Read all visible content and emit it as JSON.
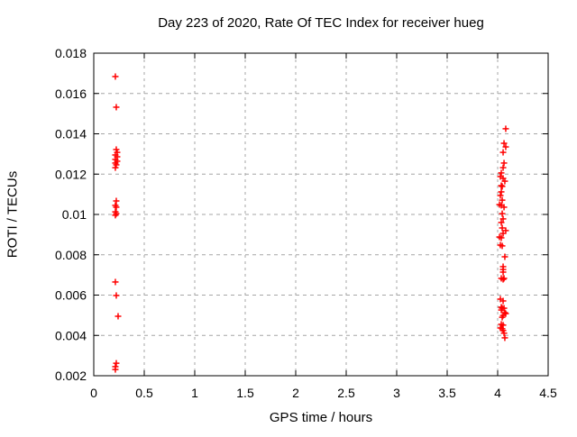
{
  "chart_data": {
    "type": "scatter",
    "title": "Day 223 of 2020, Rate Of TEC Index for receiver hueg",
    "xlabel": "GPS time / hours",
    "ylabel": "ROTI / TECUs",
    "xlim": [
      0,
      4.5
    ],
    "ylim": [
      0.002,
      0.018
    ],
    "xticks": [
      [
        0,
        "0"
      ],
      [
        0.5,
        "0.5"
      ],
      [
        1,
        "1"
      ],
      [
        1.5,
        "1.5"
      ],
      [
        2,
        "2"
      ],
      [
        2.5,
        "2.5"
      ],
      [
        3,
        "3"
      ],
      [
        3.5,
        "3.5"
      ],
      [
        4,
        "4"
      ],
      [
        4.5,
        "4.5"
      ]
    ],
    "yticks": [
      [
        0.002,
        "0.002"
      ],
      [
        0.004,
        "0.004"
      ],
      [
        0.006,
        "0.006"
      ],
      [
        0.008,
        "0.008"
      ],
      [
        0.01,
        "0.01"
      ],
      [
        0.012,
        "0.012"
      ],
      [
        0.014,
        "0.014"
      ],
      [
        0.016,
        "0.016"
      ],
      [
        0.018,
        "0.018"
      ]
    ],
    "grid": true,
    "legend": "none",
    "marker": "plus",
    "colors": {
      "marker": "#ff0000",
      "grid": "#a6a6a6",
      "axis": "#000000",
      "text": "#000000",
      "background": "#ffffff"
    },
    "series": [
      {
        "name": "ROTI",
        "points": [
          [
            0.214,
            0.01684
          ],
          [
            0.223,
            0.01532
          ],
          [
            0.223,
            0.01322
          ],
          [
            0.232,
            0.01308
          ],
          [
            0.214,
            0.01295
          ],
          [
            0.232,
            0.01286
          ],
          [
            0.214,
            0.01273
          ],
          [
            0.232,
            0.01264
          ],
          [
            0.214,
            0.01255
          ],
          [
            0.223,
            0.01246
          ],
          [
            0.214,
            0.01232
          ],
          [
            0.223,
            0.01067
          ],
          [
            0.214,
            0.01045
          ],
          [
            0.223,
            0.01036
          ],
          [
            0.214,
            0.01013
          ],
          [
            0.223,
            0.01004
          ],
          [
            0.214,
            0.00996
          ],
          [
            0.214,
            0.00665
          ],
          [
            0.223,
            0.00598
          ],
          [
            0.241,
            0.00495
          ],
          [
            0.223,
            0.00262
          ],
          [
            0.214,
            0.00245
          ],
          [
            0.214,
            0.00231
          ],
          [
            4.08,
            0.01425
          ],
          [
            4.063,
            0.01353
          ],
          [
            4.08,
            0.01335
          ],
          [
            4.054,
            0.01308
          ],
          [
            4.063,
            0.01255
          ],
          [
            4.054,
            0.01232
          ],
          [
            4.036,
            0.01206
          ],
          [
            4.027,
            0.01188
          ],
          [
            4.054,
            0.01179
          ],
          [
            4.071,
            0.01165
          ],
          [
            4.036,
            0.01143
          ],
          [
            4.045,
            0.01139
          ],
          [
            4.036,
            0.01112
          ],
          [
            4.027,
            0.01094
          ],
          [
            4.045,
            0.01071
          ],
          [
            4.018,
            0.01049
          ],
          [
            4.036,
            0.01045
          ],
          [
            4.063,
            0.01036
          ],
          [
            4.045,
            0.01004
          ],
          [
            4.054,
            0.00978
          ],
          [
            4.036,
            0.0096
          ],
          [
            4.045,
            0.00933
          ],
          [
            4.08,
            0.0092
          ],
          [
            4.054,
            0.00906
          ],
          [
            4.018,
            0.00888
          ],
          [
            4.036,
            0.00884
          ],
          [
            4.027,
            0.00848
          ],
          [
            4.045,
            0.00844
          ],
          [
            4.071,
            0.0079
          ],
          [
            4.054,
            0.00741
          ],
          [
            4.054,
            0.00727
          ],
          [
            4.054,
            0.00714
          ],
          [
            4.036,
            0.00683
          ],
          [
            4.063,
            0.00683
          ],
          [
            4.054,
            0.00678
          ],
          [
            4.027,
            0.0058
          ],
          [
            4.054,
            0.00571
          ],
          [
            4.036,
            0.0054
          ],
          [
            4.045,
            0.00535
          ],
          [
            4.063,
            0.00535
          ],
          [
            4.036,
            0.00526
          ],
          [
            4.071,
            0.00513
          ],
          [
            4.08,
            0.00508
          ],
          [
            4.054,
            0.00499
          ],
          [
            4.045,
            0.0049
          ],
          [
            4.036,
            0.00455
          ],
          [
            4.054,
            0.00451
          ],
          [
            4.027,
            0.00437
          ],
          [
            4.045,
            0.00433
          ],
          [
            4.054,
            0.00424
          ],
          [
            4.063,
            0.00411
          ],
          [
            4.071,
            0.00388
          ]
        ]
      }
    ]
  }
}
